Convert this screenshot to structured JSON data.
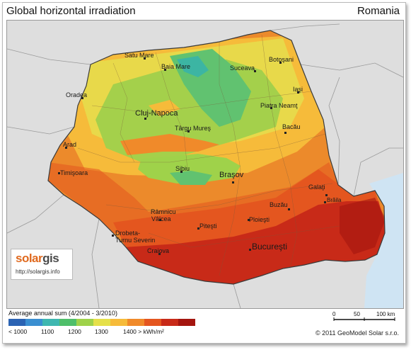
{
  "header": {
    "title": "Global horizontal irradiation",
    "country": "Romania"
  },
  "cities": [
    {
      "id": "satu-mare",
      "label": "Satu Mare"
    },
    {
      "id": "baia-mare",
      "label": "Baia Mare"
    },
    {
      "id": "suceava",
      "label": "Suceava"
    },
    {
      "id": "botosani",
      "label": "Botoşani"
    },
    {
      "id": "oradea",
      "label": "Oradea"
    },
    {
      "id": "iasi",
      "label": "Iaşi"
    },
    {
      "id": "cluj-napoca",
      "label": "Cluj-Napoca"
    },
    {
      "id": "piatra-neamt",
      "label": "Piatra Neamţ"
    },
    {
      "id": "targu-mures",
      "label": "Târgu Mureş"
    },
    {
      "id": "bacau",
      "label": "Bacău"
    },
    {
      "id": "arad",
      "label": "Arad"
    },
    {
      "id": "timisoara",
      "label": "Timişoara"
    },
    {
      "id": "sibiu",
      "label": "Sibiu"
    },
    {
      "id": "brasov",
      "label": "Braşov"
    },
    {
      "id": "galati",
      "label": "Galaţi"
    },
    {
      "id": "braila",
      "label": "Brăila"
    },
    {
      "id": "buzau",
      "label": "Buzău"
    },
    {
      "id": "ramnicu-valcea-1",
      "label": "Râmnicu"
    },
    {
      "id": "ramnicu-valcea-2",
      "label": "Vâlcea"
    },
    {
      "id": "ploiesti",
      "label": "Ploieşti"
    },
    {
      "id": "pitesti",
      "label": "Piteşti"
    },
    {
      "id": "drobeta-1",
      "label": "Drobeta-"
    },
    {
      "id": "drobeta-2",
      "label": "Turnu Severin"
    },
    {
      "id": "bucuresti",
      "label": "Bucureşti"
    },
    {
      "id": "craiova",
      "label": "Craiova"
    }
  ],
  "logo": {
    "solar": "solar",
    "gis": "gis",
    "url": "http://solargis.info"
  },
  "legend": {
    "title": "Average annual sum (4/2004 - 3/2010)",
    "ticks": [
      "< 1000",
      "1100",
      "1200",
      "1300",
      "1400 > kWh/m²"
    ],
    "colors": [
      "#2b63b3",
      "#3a8fd1",
      "#3fb7b0",
      "#4fbf6a",
      "#9fd24a",
      "#e5e04a",
      "#f6bb3a",
      "#f08a2a",
      "#e4561f",
      "#c82a18",
      "#a4150f"
    ]
  },
  "scale": {
    "labels": [
      "0",
      "50",
      "100 km"
    ]
  },
  "footer": {
    "copyright": "© 2011 GeoModel Solar s.r.o."
  }
}
